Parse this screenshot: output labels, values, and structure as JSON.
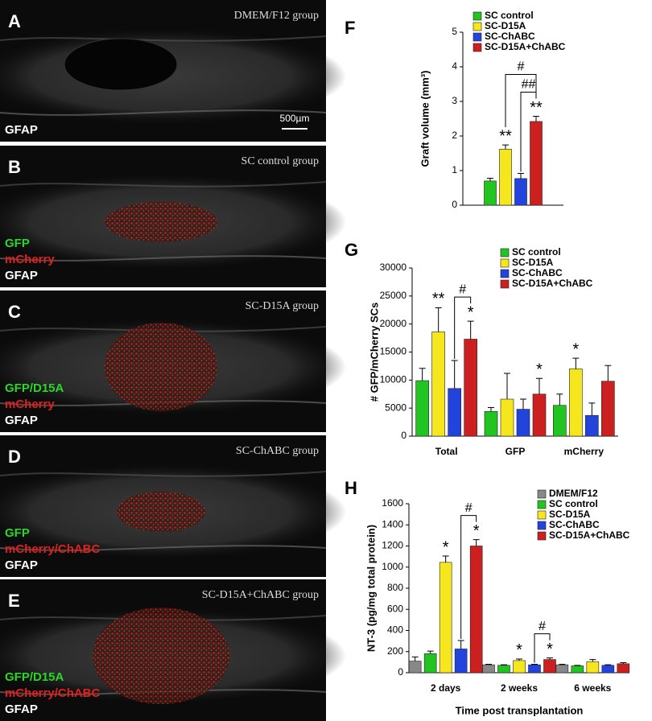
{
  "image_panels": [
    {
      "label": "A",
      "title": "DMEM/F12 group",
      "scale_bar": "500µm",
      "stains": [
        {
          "text": "GFAP",
          "color": "#ffffff"
        }
      ]
    },
    {
      "label": "B",
      "title": "SC control group",
      "stains": [
        {
          "text": "GFP",
          "color": "#2bd62b"
        },
        {
          "text": "mCherry",
          "color": "#e02020"
        },
        {
          "text": "GFAP",
          "color": "#ffffff"
        }
      ]
    },
    {
      "label": "C",
      "title": "SC-D15A group",
      "stains": [
        {
          "text": "GFP/D15A",
          "color": "#2bd62b"
        },
        {
          "text": "mCherry",
          "color": "#e02020"
        },
        {
          "text": "GFAP",
          "color": "#ffffff"
        }
      ]
    },
    {
      "label": "D",
      "title": "SC-ChABC group",
      "stains": [
        {
          "text": "GFP",
          "color": "#2bd62b"
        },
        {
          "text": "mCherry/ChABC",
          "color": "#e02020"
        },
        {
          "text": "GFAP",
          "color": "#ffffff"
        }
      ]
    },
    {
      "label": "E",
      "title": "SC-D15A+ChABC group",
      "stains": [
        {
          "text": "GFP/D15A",
          "color": "#2bd62b"
        },
        {
          "text": "mCherry/ChABC",
          "color": "#e02020"
        },
        {
          "text": "GFAP",
          "color": "#ffffff"
        }
      ]
    }
  ],
  "chart_data": [
    {
      "type": "bar",
      "panel_label": "F",
      "y_label": "Graft volume (mm³)",
      "categories": [
        null
      ],
      "ylim": [
        0,
        5
      ],
      "yticks": [
        0,
        1,
        2,
        3,
        4,
        5
      ],
      "series": [
        {
          "name": "SC control",
          "color": "#22c422",
          "values": [
            0.7
          ],
          "errors": [
            0.08
          ],
          "marks": [
            null
          ]
        },
        {
          "name": "SC-D15A",
          "color": "#f5e61e",
          "values": [
            1.62
          ],
          "errors": [
            0.12
          ],
          "marks": [
            "**"
          ]
        },
        {
          "name": "SC-ChABC",
          "color": "#2244dd",
          "values": [
            0.77
          ],
          "errors": [
            0.15
          ],
          "marks": [
            null
          ]
        },
        {
          "name": "SC-D15A+ChABC",
          "color": "#cc2020",
          "values": [
            2.42
          ],
          "errors": [
            0.15
          ],
          "marks": [
            "**"
          ]
        }
      ],
      "comparisons": [
        {
          "label": "##",
          "between": [
            "SC-ChABC",
            "SC-D15A+ChABC"
          ]
        },
        {
          "label": "#",
          "between": [
            "SC-D15A",
            "SC-D15A+ChABC"
          ]
        }
      ]
    },
    {
      "type": "bar",
      "panel_label": "G",
      "y_label": "# GFP/mCherry SCs",
      "categories": [
        "Total",
        "GFP",
        "mCherry"
      ],
      "ylim": [
        0,
        30000
      ],
      "yticks": [
        0,
        5000,
        10000,
        15000,
        20000,
        25000,
        30000
      ],
      "series": [
        {
          "name": "SC control",
          "color": "#22c422",
          "values": [
            9900,
            4400,
            5500
          ],
          "errors": [
            2200,
            700,
            2000
          ],
          "marks": [
            null,
            null,
            null
          ]
        },
        {
          "name": "SC-D15A",
          "color": "#f5e61e",
          "values": [
            18600,
            6600,
            12000
          ],
          "errors": [
            4300,
            4600,
            1900
          ],
          "marks": [
            "**",
            null,
            "*"
          ]
        },
        {
          "name": "SC-ChABC",
          "color": "#2244dd",
          "values": [
            8500,
            4800,
            3700
          ],
          "errors": [
            5000,
            1800,
            2200
          ],
          "marks": [
            null,
            null,
            null
          ]
        },
        {
          "name": "SC-D15A+ChABC",
          "color": "#cc2020",
          "values": [
            17300,
            7500,
            9800
          ],
          "errors": [
            3200,
            2800,
            2800
          ],
          "marks": [
            "*",
            "*",
            null
          ]
        }
      ],
      "comparisons": [
        {
          "label": "#",
          "category": "Total",
          "between": [
            "SC-ChABC",
            "SC-D15A+ChABC"
          ]
        }
      ]
    },
    {
      "type": "bar",
      "panel_label": "H",
      "y_label": "NT-3 (pg/mg total protein)",
      "x_label": "Time post transplantation",
      "categories": [
        "2 days",
        "2 weeks",
        "6 weeks"
      ],
      "ylim": [
        0,
        1600
      ],
      "yticks": [
        0,
        200,
        400,
        600,
        800,
        1000,
        1200,
        1400,
        1600
      ],
      "series": [
        {
          "name": "DMEM/F12",
          "color": "#888888",
          "values": [
            110,
            75,
            75
          ],
          "errors": [
            40,
            5,
            5
          ],
          "marks": [
            null,
            null,
            null
          ]
        },
        {
          "name": "SC control",
          "color": "#22c422",
          "values": [
            180,
            70,
            65
          ],
          "errors": [
            25,
            5,
            5
          ],
          "marks": [
            null,
            null,
            null
          ]
        },
        {
          "name": "SC-D15A",
          "color": "#f5e61e",
          "values": [
            1045,
            115,
            105
          ],
          "errors": [
            60,
            15,
            20
          ],
          "marks": [
            "*",
            "*",
            null
          ]
        },
        {
          "name": "SC-ChABC",
          "color": "#2244dd",
          "values": [
            225,
            75,
            70
          ],
          "errors": [
            80,
            5,
            5
          ],
          "marks": [
            null,
            null,
            null
          ]
        },
        {
          "name": "SC-D15A+ChABC",
          "color": "#cc2020",
          "values": [
            1200,
            125,
            85
          ],
          "errors": [
            60,
            15,
            10
          ],
          "marks": [
            "*",
            "*",
            null
          ]
        }
      ],
      "comparisons": [
        {
          "label": "#",
          "category": "2 days",
          "between": [
            "SC-ChABC",
            "SC-D15A+ChABC"
          ]
        },
        {
          "label": "#",
          "category": "2 weeks",
          "between": [
            "SC-ChABC",
            "SC-D15A+ChABC"
          ]
        }
      ]
    }
  ]
}
